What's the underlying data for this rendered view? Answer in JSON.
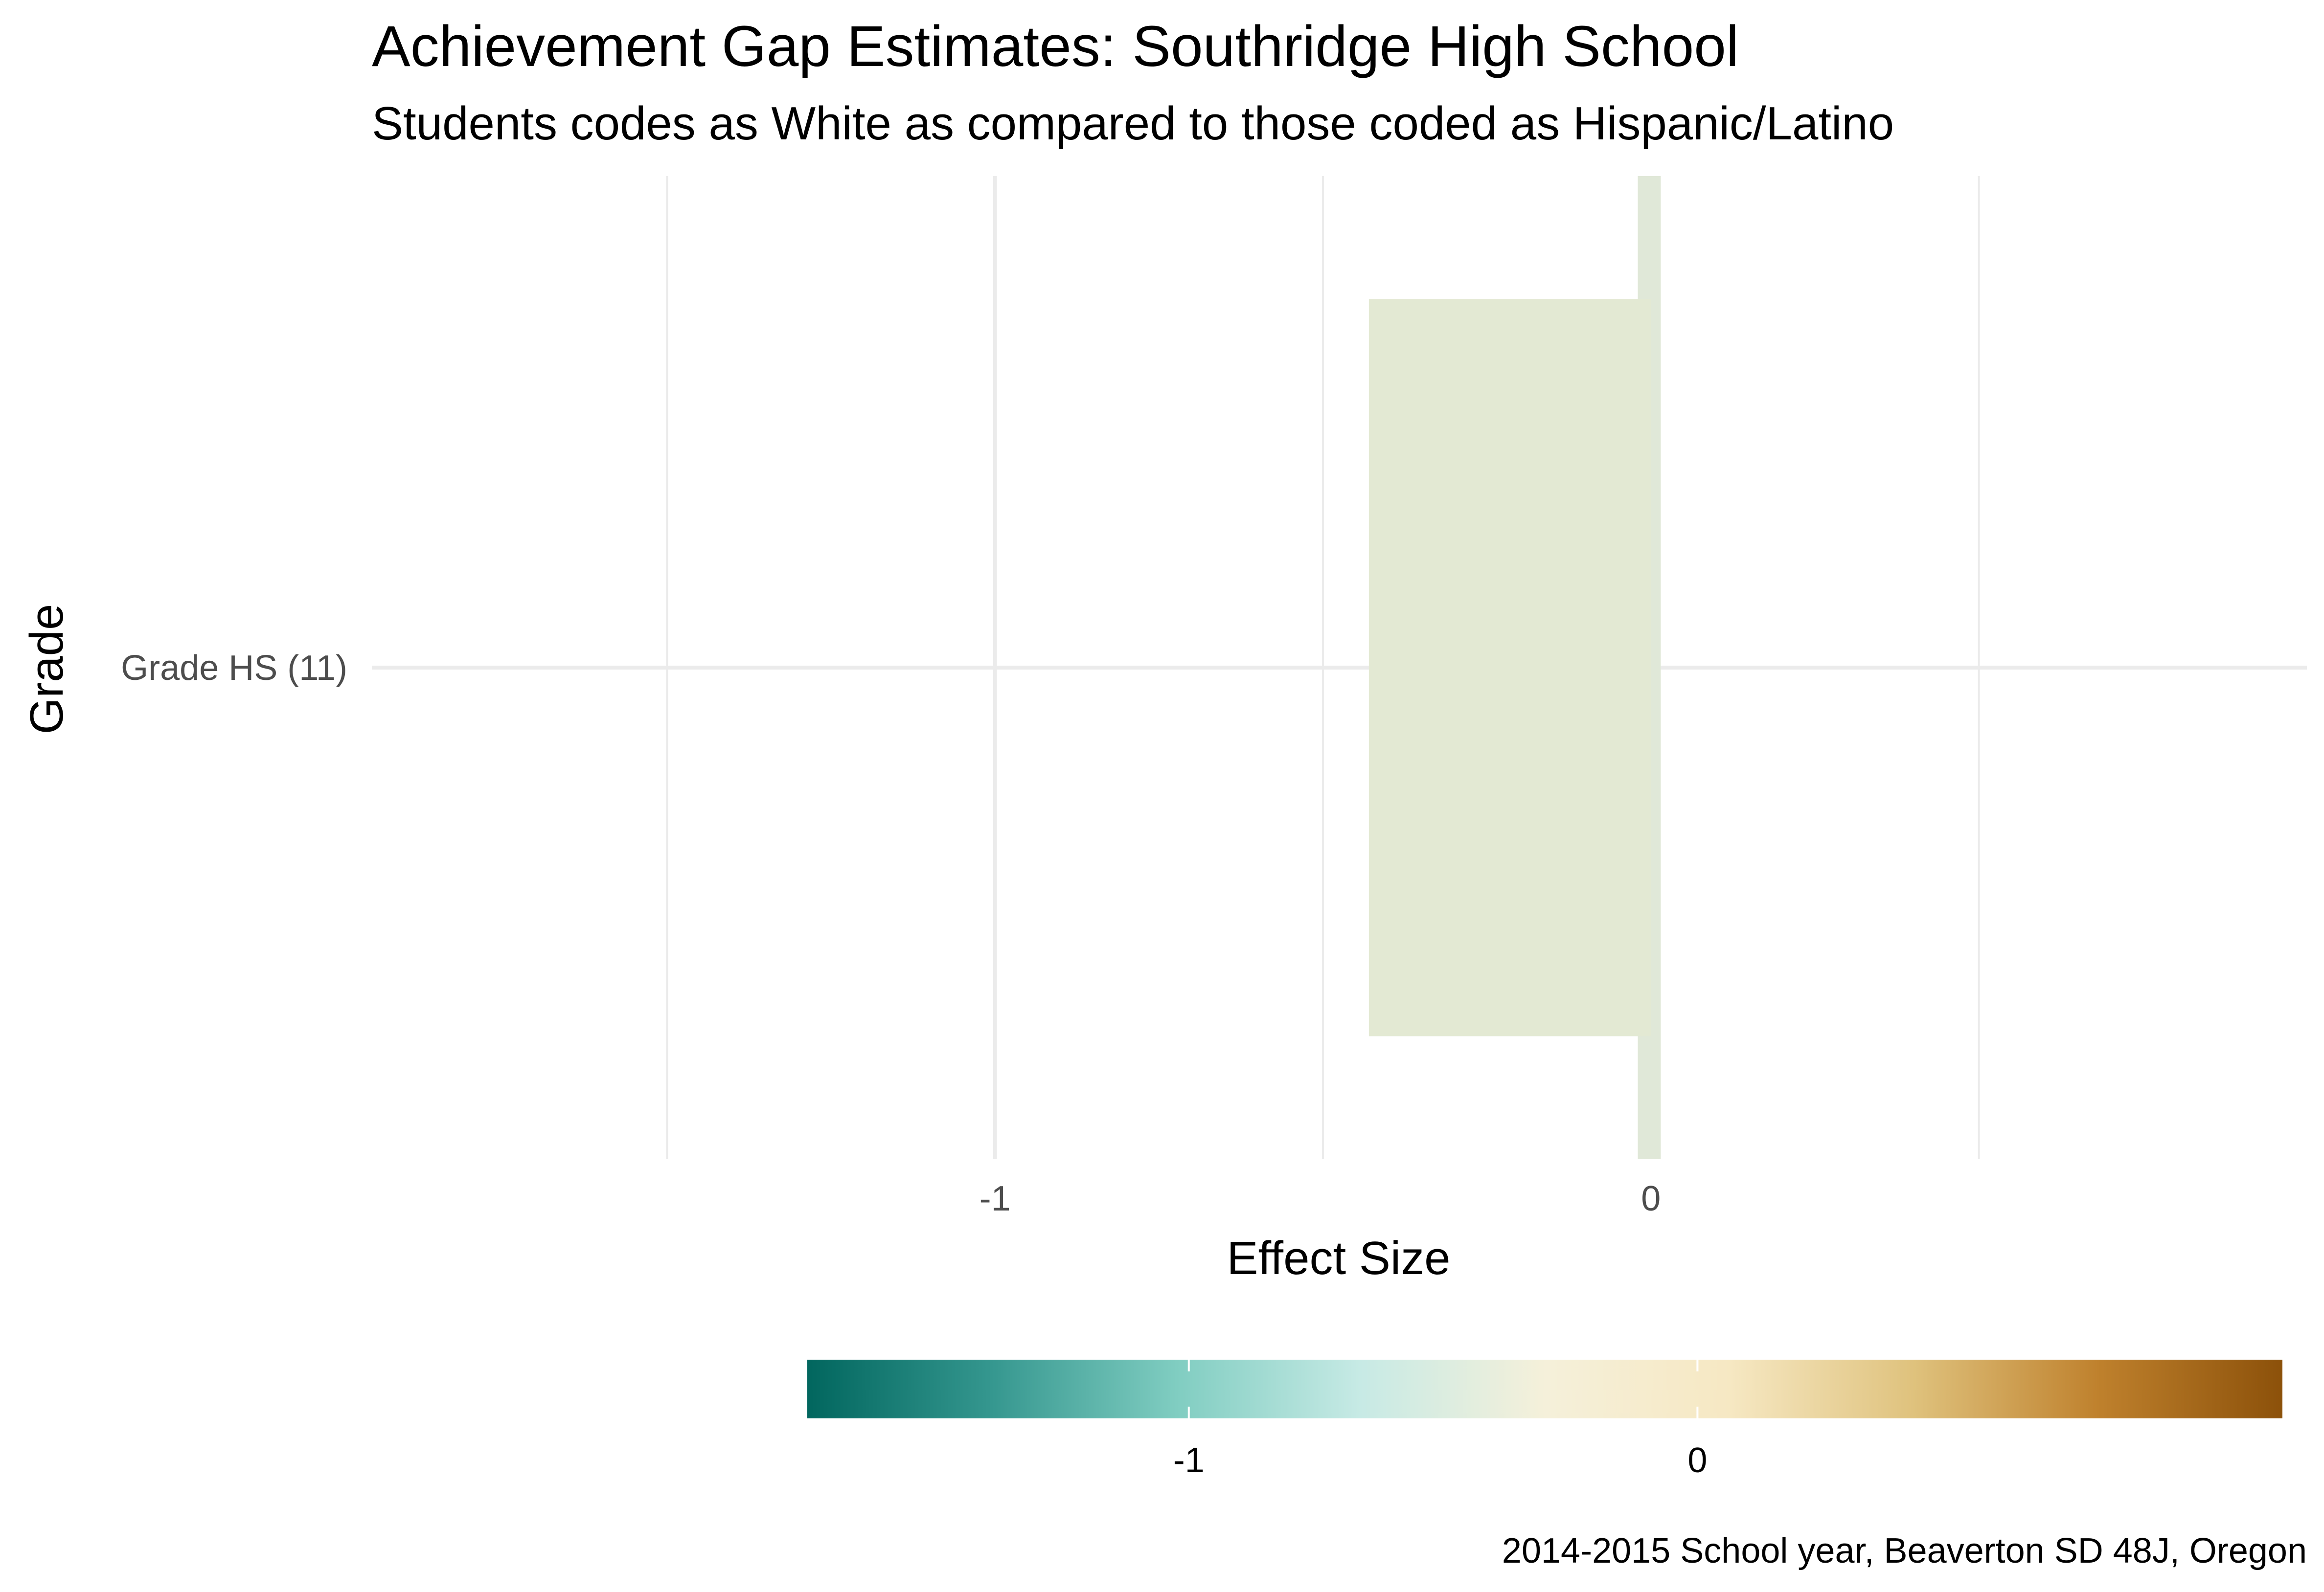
{
  "chart_data": {
    "type": "bar",
    "orientation": "horizontal",
    "title": "Achievement Gap Estimates: Southridge High School",
    "subtitle": "Students codes as White as compared to those coded as Hispanic/Latino",
    "xlabel": "Effect Size",
    "ylabel": "Grade",
    "categories": [
      "Grade HS (11)"
    ],
    "series": [
      {
        "name": "Effect Size",
        "values": [
          -0.43
        ],
        "colors": [
          "#e3e9d3"
        ],
        "ci_band": {
          "low": -0.02,
          "high": 0.015,
          "color": "#e0e8d8"
        }
      }
    ],
    "xlim": [
      -1.95,
      1.0
    ],
    "x_major_ticks": [
      -1,
      0
    ],
    "x_tick_labels": [
      "-1",
      "0"
    ],
    "x_minor_ticks": [
      -1.5,
      -0.5,
      0.5
    ],
    "grid": true,
    "legend": {
      "position": "bottom",
      "type": "colorbar",
      "range": [
        -1.75,
        1.15
      ],
      "ticks": [
        -1,
        0
      ],
      "tick_labels": [
        "-1",
        "0"
      ],
      "colors": [
        "#01665e",
        "#35978f",
        "#80cdc1",
        "#c7eae5",
        "#f5f0da",
        "#f6e8c3",
        "#dfc27d",
        "#bf812d",
        "#8c510a"
      ]
    },
    "caption": "2014-2015 School year, Beaverton SD 48J, Oregon"
  }
}
